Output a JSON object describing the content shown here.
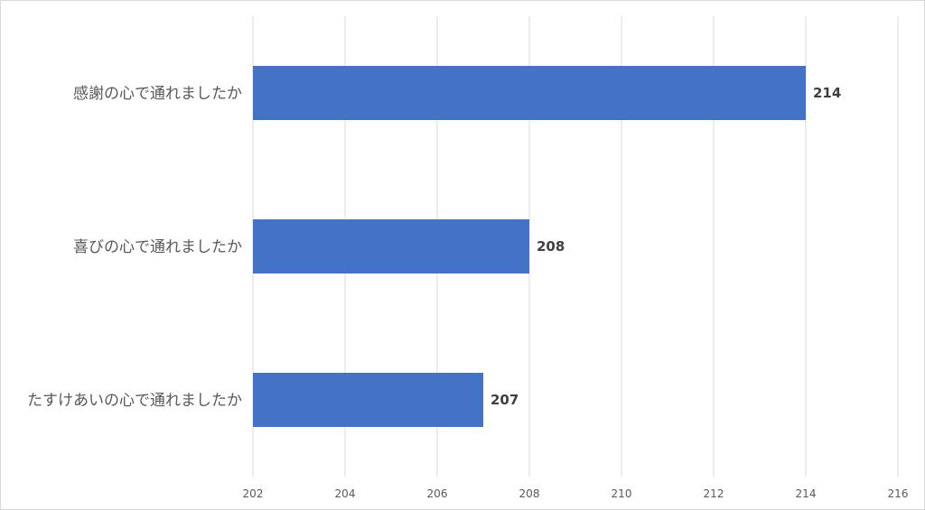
{
  "chart_data": {
    "type": "bar",
    "orientation": "horizontal",
    "categories": [
      "感謝の心で通れましたか",
      "喜びの心で通れましたか",
      "たすけあいの心で通れましたか"
    ],
    "values": [
      214,
      208,
      207
    ],
    "xlim": [
      202,
      216
    ],
    "xticks": [
      202,
      204,
      206,
      208,
      210,
      212,
      214,
      216
    ],
    "grid": true,
    "legend": "none",
    "bar_color": "#4472c4",
    "data_labels": true
  }
}
